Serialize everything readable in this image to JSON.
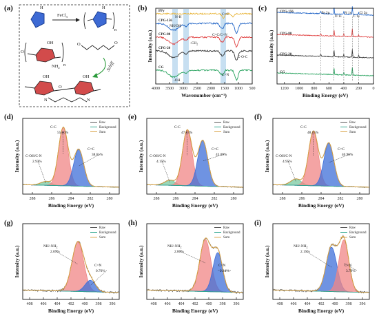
{
  "panel_labels": [
    "(a)",
    "(b)",
    "(c)",
    "(d)",
    "(e)",
    "(f)",
    "(g)",
    "(h)",
    "(i)"
  ],
  "scheme": {
    "reagent": "FeCl",
    "reagent_sub": "3",
    "schiff": "Schiff",
    "n": "n",
    "oh": "OH",
    "nh2": "NH",
    "nh2_sub": "2",
    "nh": "H",
    "o": "O",
    "n_atom": "N"
  },
  "colors": {
    "pink_fill": "#f08585",
    "blue_fill": "#3f6fd8",
    "green_fill": "#79c9a0",
    "sum_line": "#d8a040",
    "raw_line": "#555555",
    "bg_line": "#2ca58d",
    "ftir_cpg156": "#1f63c6",
    "ftir_cpg80": "#e03c3c",
    "ftir_cpg20": "#333333",
    "ftir_cg": "#22a05a",
    "ftir_ppy": "#e8b53a",
    "band": "#b9d7ee"
  },
  "chart_data": [
    {
      "type": "line",
      "panel": "b",
      "xlabel": "Wavenumber (cm⁻¹)",
      "ylabel": "Intensity (a.u.)",
      "xlim": [
        4000,
        500
      ],
      "xticks": [
        "4000",
        "3500",
        "3000",
        "2500",
        "2000",
        "1500",
        "1000",
        "500"
      ],
      "series": [
        {
          "name": "PPy",
          "color_key": "ftir_ppy"
        },
        {
          "name": "CPG-156",
          "color_key": "ftir_cpg156"
        },
        {
          "name": "CPG-80",
          "color_key": "ftir_cpg80"
        },
        {
          "name": "CPG-20",
          "color_key": "ftir_cpg20"
        },
        {
          "name": "CG",
          "color_key": "ftir_cg"
        }
      ],
      "annotations": [
        "N-H",
        "C=C",
        "NH/OH",
        "C=C/C=N",
        "-CH",
        "C-O-C",
        "C=N",
        "-OH"
      ],
      "annotation_subs": {
        "-CH": "2"
      },
      "bands": [
        3300,
        2900,
        1550
      ]
    },
    {
      "type": "line",
      "panel": "c",
      "xlabel": "Binding Energy (eV)",
      "ylabel": "Intensity (a.u.)",
      "xlim": [
        1300,
        0
      ],
      "xticks": [
        "1200",
        "1000",
        "800",
        "600",
        "400",
        "200",
        "0"
      ],
      "series": [
        {
          "name": "CPG-156",
          "color_key": "ftir_cpg156"
        },
        {
          "name": "CPG-80",
          "color_key": "ftir_cpg80"
        },
        {
          "name": "CPG-20",
          "color_key": "ftir_cpg20"
        },
        {
          "name": "CG",
          "color_key": "ftir_cg"
        }
      ],
      "peaks": [
        "Fe 2p",
        "O 1s",
        "N 1s",
        "C 1s",
        "Cl 2p"
      ]
    },
    {
      "type": "area",
      "panel": "d",
      "xlabel": "Binding Energy (eV)",
      "ylabel": "Intensity (a.u.)",
      "xlim": [
        289,
        279
      ],
      "xticks": [
        "288",
        "286",
        "284",
        "282",
        "280"
      ],
      "legend": [
        "Raw",
        "Background",
        "Sum"
      ],
      "components": [
        {
          "label": "C-OH/C-N",
          "pct": "2.93%",
          "center": 286.6,
          "amp": 0.06,
          "sigma": 0.55,
          "fill": "green_fill"
        },
        {
          "label": "C-C",
          "pct": "55.00%",
          "center": 284.8,
          "amp": 0.92,
          "sigma": 0.5,
          "fill": "pink_fill"
        },
        {
          "label": "C=C",
          "pct": "38.61%",
          "center": 283.2,
          "amp": 0.58,
          "sigma": 0.52,
          "fill": "blue_fill"
        }
      ]
    },
    {
      "type": "area",
      "panel": "e",
      "xlabel": "Binding Energy (eV)",
      "ylabel": "Intensity (a.u.)",
      "xlim": [
        289,
        279
      ],
      "xticks": [
        "288",
        "286",
        "284",
        "282",
        "280"
      ],
      "legend": [
        "Raw",
        "Background",
        "Sum"
      ],
      "components": [
        {
          "label": "C-OH/C-N",
          "pct": "4.15%",
          "center": 286.6,
          "amp": 0.08,
          "sigma": 0.55,
          "fill": "green_fill"
        },
        {
          "label": "C-C",
          "pct": "47.83%",
          "center": 284.8,
          "amp": 0.88,
          "sigma": 0.5,
          "fill": "pink_fill"
        },
        {
          "label": "C=C",
          "pct": "43.09%",
          "center": 283.2,
          "amp": 0.72,
          "sigma": 0.52,
          "fill": "blue_fill"
        }
      ]
    },
    {
      "type": "area",
      "panel": "f",
      "xlabel": "Binding Energy (eV)",
      "ylabel": "Intensity (a.u.)",
      "xlim": [
        289,
        279
      ],
      "xticks": [
        "288",
        "286",
        "284",
        "282",
        "280"
      ],
      "legend": [
        "Raw",
        "Background",
        "Sum"
      ],
      "components": [
        {
          "label": "C-OH/C-N",
          "pct": "4.95%",
          "center": 286.6,
          "amp": 0.1,
          "sigma": 0.55,
          "fill": "green_fill"
        },
        {
          "label": "C-C",
          "pct": "48.15%",
          "center": 284.8,
          "amp": 0.86,
          "sigma": 0.5,
          "fill": "pink_fill"
        },
        {
          "label": "C=C",
          "pct": "40.96%",
          "center": 283.2,
          "amp": 0.68,
          "sigma": 0.52,
          "fill": "blue_fill"
        }
      ]
    },
    {
      "type": "area",
      "panel": "g",
      "xlabel": "Binding Energy (eV)",
      "ylabel": "Intensity (a.u.)",
      "xlim": [
        409,
        395
      ],
      "xticks": [
        "408",
        "406",
        "404",
        "402",
        "400",
        "398",
        "396"
      ],
      "legend": [
        "Raw",
        "Background",
        "Sum"
      ],
      "components": [
        {
          "label": "NH/-NH",
          "sub": "2",
          "pct": "2.69%",
          "center": 401.0,
          "amp": 0.78,
          "sigma": 0.85,
          "fill": "pink_fill"
        },
        {
          "label": "C=N",
          "pct": "0.76%",
          "center": 399.2,
          "amp": 0.18,
          "sigma": 0.75,
          "fill": "blue_fill"
        }
      ]
    },
    {
      "type": "area",
      "panel": "h",
      "xlabel": "Binding Energy (eV)",
      "ylabel": "Intensity (a.u.)",
      "xlim": [
        409,
        395
      ],
      "xticks": [
        "408",
        "406",
        "404",
        "402",
        "400",
        "398",
        "396"
      ],
      "legend": [
        "Raw",
        "Background",
        "Sum"
      ],
      "components": [
        {
          "label": "NH/-NH",
          "sub": "2",
          "pct": "2.80%",
          "center": 400.5,
          "amp": 0.82,
          "sigma": 0.8,
          "fill": "pink_fill"
        },
        {
          "label": "C=N",
          "pct": "2.24%",
          "center": 398.7,
          "amp": 0.62,
          "sigma": 0.7,
          "fill": "blue_fill"
        }
      ]
    },
    {
      "type": "area",
      "panel": "i",
      "xlabel": "Binding Energy (eV)",
      "ylabel": "Intensity (a.u.)",
      "xlim": [
        409,
        395
      ],
      "xticks": [
        "408",
        "406",
        "404",
        "402",
        "400",
        "398",
        "396"
      ],
      "legend": [
        "Raw",
        "Background",
        "Sum"
      ],
      "components": [
        {
          "label": "NH/-NH",
          "sub": "2",
          "pct": "2.15%",
          "center": 400.5,
          "amp": 0.7,
          "sigma": 0.78,
          "fill": "blue_fill"
        },
        {
          "label": "C=N",
          "pct": "3.79%",
          "center": 398.7,
          "amp": 0.82,
          "sigma": 0.72,
          "fill": "pink_fill"
        }
      ]
    }
  ]
}
